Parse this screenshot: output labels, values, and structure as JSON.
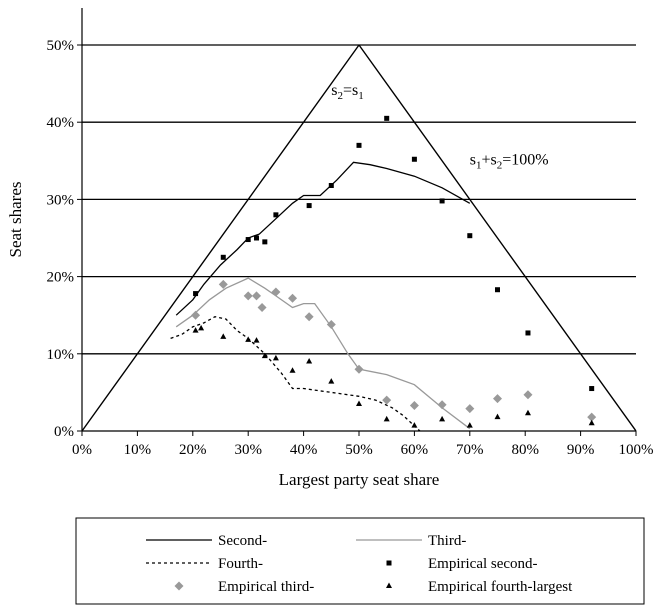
{
  "chart_data": {
    "type": "line",
    "title": "",
    "xlabel": "Largest party seat share",
    "ylabel": "Seat shares",
    "xlim": [
      0,
      100
    ],
    "ylim": [
      0,
      50
    ],
    "x_ticks": [
      "0%",
      "10%",
      "20%",
      "30%",
      "40%",
      "50%",
      "60%",
      "70%",
      "80%",
      "90%",
      "100%"
    ],
    "y_ticks": [
      "0%",
      "10%",
      "20%",
      "30%",
      "40%",
      "50%"
    ],
    "grid": "horizontal",
    "legend_position": "bottom",
    "annotations": [
      {
        "id": "s2eq",
        "text_parts": [
          "s",
          "2",
          "=s",
          "1"
        ],
        "x": 45,
        "y": 43.5
      },
      {
        "id": "s1plus",
        "text_parts": [
          "s",
          "1",
          "+s",
          "2",
          "=100%"
        ],
        "x": 70,
        "y": 34.5
      }
    ],
    "reference_lines": [
      {
        "id": "s2-equals-s1",
        "points": [
          [
            0,
            0
          ],
          [
            50,
            50
          ]
        ]
      },
      {
        "id": "s1-plus-s2",
        "points": [
          [
            50,
            50
          ],
          [
            100,
            0
          ]
        ]
      }
    ],
    "legend": [
      {
        "label": "Second-",
        "series": "second"
      },
      {
        "label": "Third-",
        "series": "third"
      },
      {
        "label": "Fourth-",
        "series": "fourth"
      },
      {
        "label": "Empirical second-",
        "series": "emp_second"
      },
      {
        "label": "Empirical third-",
        "series": "emp_third"
      },
      {
        "label": "Empirical fourth-largest",
        "series": "emp_fourth"
      }
    ],
    "series": [
      {
        "id": "second",
        "kind": "line",
        "color": "#000000",
        "dash": "",
        "x": [
          17,
          20,
          22,
          25,
          28,
          30,
          32,
          35,
          38,
          40,
          43,
          46,
          49,
          52,
          55,
          60,
          65,
          70
        ],
        "y": [
          15.0,
          17.0,
          19.0,
          21.5,
          23.5,
          25.0,
          25.5,
          27.5,
          29.5,
          30.5,
          30.5,
          32.5,
          34.8,
          34.5,
          34.0,
          33.0,
          31.5,
          29.5
        ]
      },
      {
        "id": "third",
        "kind": "line",
        "color": "#999999",
        "dash": "",
        "x": [
          17,
          20,
          23,
          26,
          30,
          33,
          35,
          38,
          40,
          42,
          45,
          48,
          50,
          55,
          60,
          65,
          70
        ],
        "y": [
          13.5,
          15.0,
          17.0,
          18.5,
          19.8,
          18.5,
          17.5,
          16.0,
          16.5,
          16.5,
          13.5,
          10.0,
          8.0,
          7.3,
          6.0,
          3.0,
          0.3
        ]
      },
      {
        "id": "fourth",
        "kind": "line",
        "color": "#000000",
        "dash": "3 3",
        "x": [
          16,
          18,
          20,
          22,
          24,
          26,
          28,
          30,
          33,
          36,
          38,
          40,
          42,
          45,
          50,
          53,
          56,
          58,
          61
        ],
        "y": [
          12.0,
          12.5,
          13.5,
          14.0,
          14.8,
          14.5,
          13.0,
          12.0,
          10.0,
          7.5,
          5.5,
          5.5,
          5.3,
          5.0,
          4.5,
          4.0,
          3.0,
          2.0,
          0.0
        ]
      },
      {
        "id": "emp_second",
        "kind": "scatter",
        "marker": "square",
        "color": "#000000",
        "x": [
          20.5,
          25.5,
          30,
          31.5,
          33,
          35,
          41,
          45,
          50,
          55,
          60,
          65,
          70,
          75,
          80.5,
          92
        ],
        "y": [
          17.8,
          22.5,
          24.8,
          25.0,
          24.5,
          28.0,
          29.2,
          31.8,
          37.0,
          40.5,
          35.2,
          29.8,
          25.3,
          18.3,
          12.7,
          5.5
        ]
      },
      {
        "id": "emp_third",
        "kind": "scatter",
        "marker": "diamond",
        "color": "#999999",
        "x": [
          20.5,
          25.5,
          30,
          31.5,
          32.5,
          35,
          38,
          41,
          45,
          50,
          55,
          60,
          65,
          70,
          75,
          80.5,
          92
        ],
        "y": [
          15.0,
          19.0,
          17.5,
          17.5,
          16.0,
          18.0,
          17.2,
          14.8,
          13.8,
          8.0,
          4.0,
          3.3,
          3.4,
          2.9,
          4.2,
          4.7,
          1.8
        ]
      },
      {
        "id": "emp_fourth",
        "kind": "scatter",
        "marker": "triangle",
        "color": "#000000",
        "x": [
          20.5,
          21.5,
          25.5,
          30,
          31.5,
          33,
          35,
          38,
          41,
          45,
          50,
          55,
          60,
          65,
          70,
          75,
          80.5,
          92
        ],
        "y": [
          13.0,
          13.3,
          12.2,
          11.8,
          11.7,
          9.7,
          9.4,
          7.8,
          9.0,
          6.4,
          3.5,
          1.5,
          0.7,
          1.5,
          0.7,
          1.8,
          2.3,
          1.0
        ]
      }
    ]
  }
}
